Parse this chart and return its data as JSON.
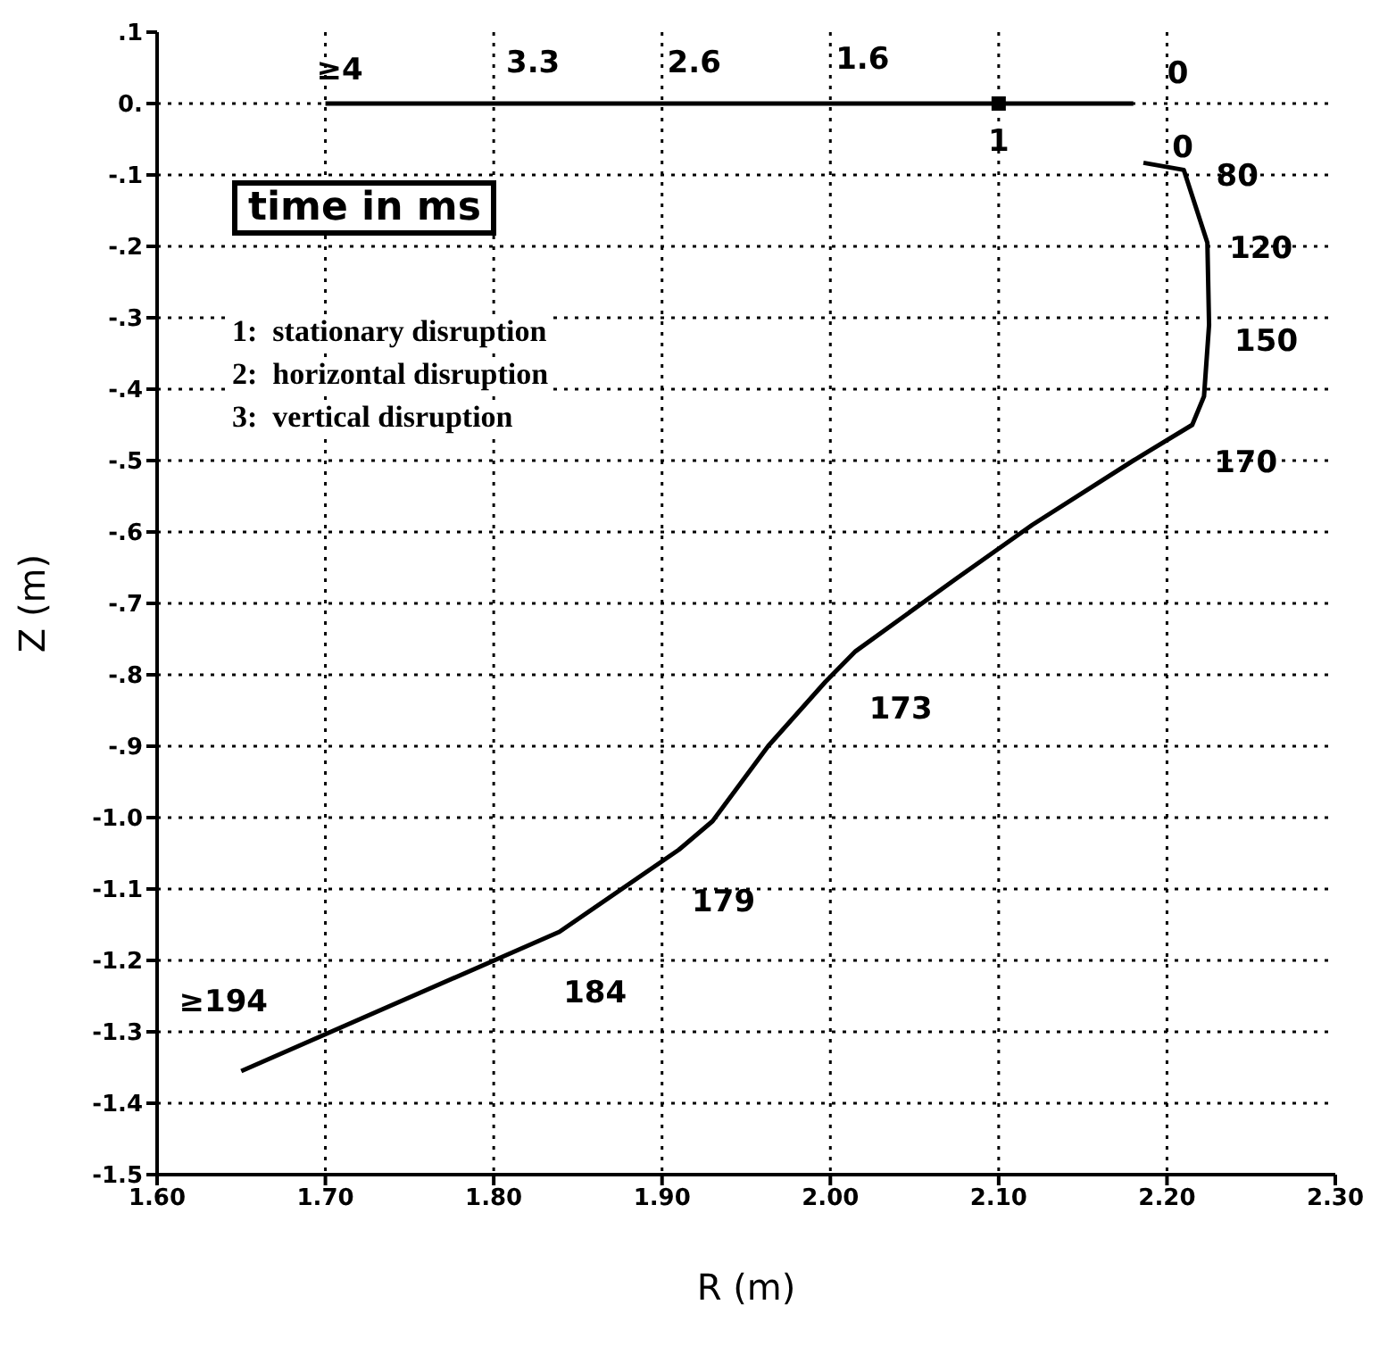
{
  "chart_data": {
    "type": "line",
    "xlabel": "R (m)",
    "ylabel": "Z (m)",
    "xlim": [
      1.6,
      2.3
    ],
    "ylim": [
      -1.5,
      0.1
    ],
    "xticks": [
      {
        "value": 1.6,
        "label": "1.60"
      },
      {
        "value": 1.7,
        "label": "1.70"
      },
      {
        "value": 1.8,
        "label": "1.80"
      },
      {
        "value": 1.9,
        "label": "1.90"
      },
      {
        "value": 2.0,
        "label": "2.00"
      },
      {
        "value": 2.1,
        "label": "2.10"
      },
      {
        "value": 2.2,
        "label": "2.20"
      },
      {
        "value": 2.3,
        "label": "2.30"
      }
    ],
    "yticks": [
      {
        "value": 0.1,
        "label": ".1"
      },
      {
        "value": 0,
        "label": "0."
      },
      {
        "value": -0.1,
        "label": "-.1"
      },
      {
        "value": -0.2,
        "label": "-.2"
      },
      {
        "value": -0.3,
        "label": "-.3"
      },
      {
        "value": -0.4,
        "label": "-.4"
      },
      {
        "value": -0.5,
        "label": "-.5"
      },
      {
        "value": -0.6,
        "label": "-.6"
      },
      {
        "value": -0.7,
        "label": "-.7"
      },
      {
        "value": -0.8,
        "label": "-.8"
      },
      {
        "value": -0.9,
        "label": "-.9"
      },
      {
        "value": -1.0,
        "label": "-1.0"
      },
      {
        "value": -1.1,
        "label": "-1.1"
      },
      {
        "value": -1.2,
        "label": "-1.2"
      },
      {
        "value": -1.3,
        "label": "-1.3"
      },
      {
        "value": -1.4,
        "label": "-1.4"
      },
      {
        "value": -1.5,
        "label": "-1.5"
      }
    ],
    "grid": true,
    "line_style": "solid",
    "marker": "none",
    "series": [
      {
        "color": "#000000",
        "x": [
          1.7,
          1.745,
          1.965,
          2.18
        ],
        "values": [
          0,
          0,
          0,
          0
        ]
      },
      {
        "color": "#000000",
        "x": [
          2.186,
          2.21,
          2.224,
          2.225,
          2.222,
          2.215,
          2.18,
          2.12,
          2.075,
          2.015,
          1.997,
          1.963,
          1.93,
          1.91,
          1.839,
          1.65
        ],
        "values": [
          -0.083,
          -0.093,
          -0.195,
          -0.31,
          -0.41,
          -0.45,
          -0.5,
          -0.59,
          -0.665,
          -0.767,
          -0.81,
          -0.9,
          -1.005,
          -1.045,
          -1.16,
          -1.355
        ]
      },
      {
        "type": "scatter",
        "color": "#000000",
        "marker": "square",
        "x": [
          2.1
        ],
        "values": [
          0
        ]
      }
    ],
    "annotations": [
      "time in ms",
      "1:  stationary disruption",
      "2:  horizontal disruption",
      "3:  vertical disruption",
      {
        "text": "≥4",
        "x": 1.7,
        "y": 0
      },
      {
        "text": "3.3",
        "x": 1.8,
        "y": 0
      },
      {
        "text": "2.6",
        "x": 1.9,
        "y": 0
      },
      {
        "text": "1.6",
        "x": 2.0,
        "y": 0
      },
      {
        "text": "0",
        "x": 2.18,
        "y": 0
      },
      {
        "text": "1",
        "x": 2.1,
        "y": 0
      },
      {
        "text": "0",
        "x": 2.186,
        "y": -0.083
      },
      {
        "text": "80",
        "x": 2.21,
        "y": -0.093
      },
      {
        "text": "120",
        "x": 2.224,
        "y": -0.195
      },
      {
        "text": "150",
        "x": 2.225,
        "y": -0.31
      },
      {
        "text": "170",
        "x": 2.215,
        "y": -0.45
      },
      {
        "text": "173",
        "x": 2.01,
        "y": -0.78
      },
      {
        "text": "179",
        "x": 1.91,
        "y": -1.045
      },
      {
        "text": "184",
        "x": 1.839,
        "y": -1.16
      },
      {
        "text": "≥194",
        "x": 1.65,
        "y": -1.355
      }
    ]
  }
}
